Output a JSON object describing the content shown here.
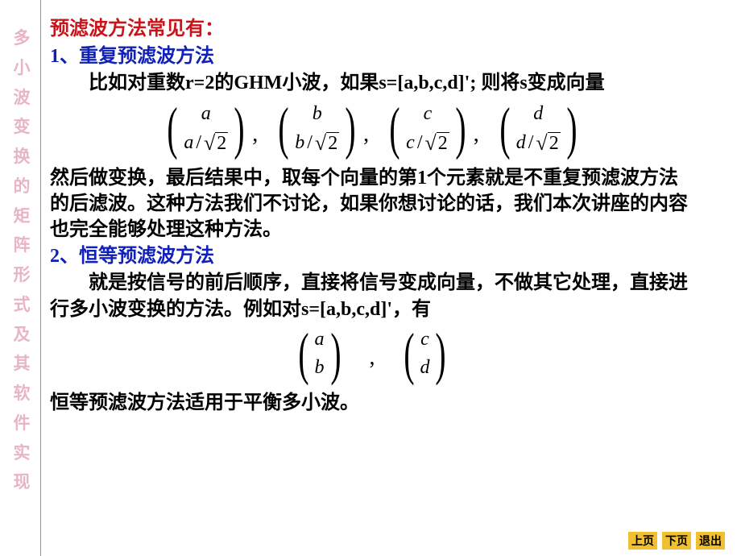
{
  "sidebar": {
    "title_chars": [
      "多",
      "小",
      "波",
      "变",
      "换",
      "的",
      "矩",
      "阵",
      "形",
      "式",
      "及",
      "其",
      "软",
      "件",
      "实",
      "现"
    ],
    "text_color": "#e8b4c8",
    "fontsize": 21
  },
  "colors": {
    "red": "#c8141b",
    "blue": "#1020b8",
    "black": "#000000",
    "nav_bg": "#f0c030",
    "background": "#ffffff",
    "divider": "#999999"
  },
  "typography": {
    "body_fontsize": 24,
    "body_weight": "bold",
    "formula_fontsize": 24,
    "nav_fontsize": 14
  },
  "content": {
    "title": "预滤波方法常见有：",
    "item1_label": "1、重复预滤波方法",
    "item1_para1": "比如对重数r=2的GHM小波，如果s=[a,b,c,d]'; 则将s变成向量",
    "formula1": {
      "denominator": "2",
      "vectors": [
        {
          "top": "a",
          "bottom_var": "a"
        },
        {
          "top": "b",
          "bottom_var": "b"
        },
        {
          "top": "c",
          "bottom_var": "c"
        },
        {
          "top": "d",
          "bottom_var": "d"
        }
      ]
    },
    "item1_para2": "然后做变换，最后结果中，取每个向量的第1个元素就是不重复预滤波方法的后滤波。这种方法我们不讨论，如果你想讨论的话，我们本次讲座的内容也完全能够处理这种方法。",
    "item2_label": "2、恒等预滤波方法",
    "item2_para1": "就是按信号的前后顺序，直接将信号变成向量，不做其它处理，直接进行多小波变换的方法。例如对s=[a,b,c,d]'，有",
    "formula2": {
      "vectors": [
        {
          "top": "a",
          "bottom": "b"
        },
        {
          "top": "c",
          "bottom": "d"
        }
      ]
    },
    "item2_para2": "恒等预滤波方法适用于平衡多小波。"
  },
  "nav": {
    "prev": "上页",
    "next": "下页",
    "exit": "退出"
  }
}
